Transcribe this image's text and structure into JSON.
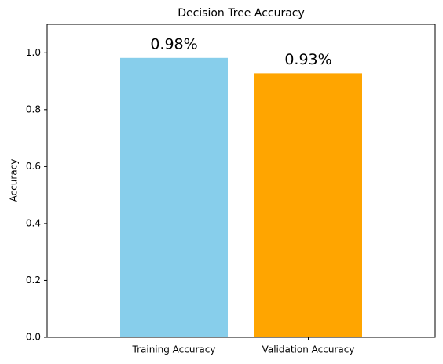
{
  "chart_data": {
    "type": "bar",
    "title": "Decision Tree Accuracy",
    "ylabel": "Accuracy",
    "categories": [
      "Training Accuracy",
      "Validation Accuracy"
    ],
    "values": [
      0.982,
      0.928
    ],
    "value_labels": [
      "0.98%",
      "0.93%"
    ],
    "colors": [
      "#87ceeb",
      "#ffa500"
    ],
    "ylim": [
      0,
      1.1
    ],
    "yticks": [
      {
        "value": 0,
        "label": "0.0"
      },
      0.2,
      0.4,
      0.6,
      0.8,
      {
        "value": 1,
        "label": "1.0"
      }
    ],
    "grid": false
  }
}
